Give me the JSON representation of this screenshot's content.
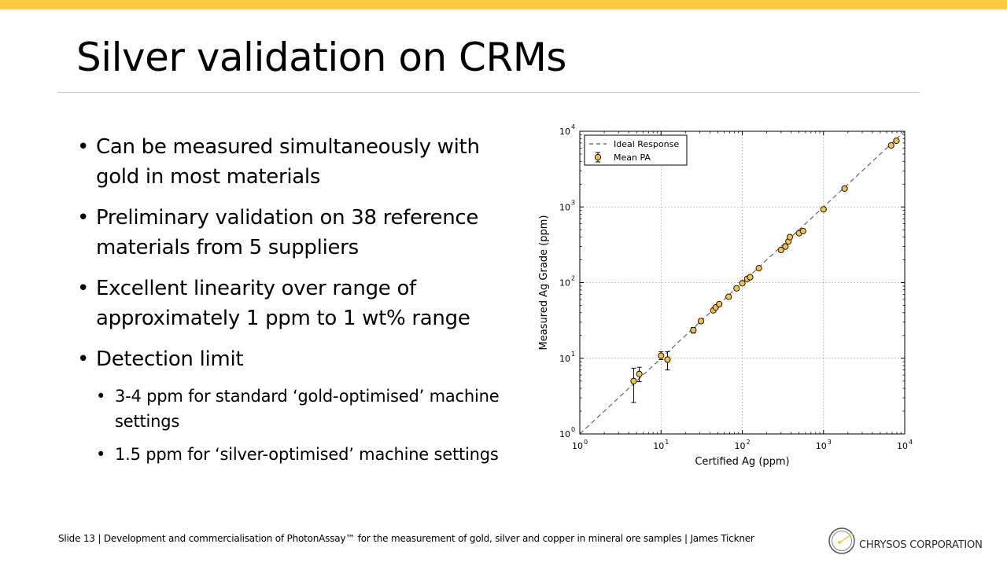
{
  "slide": {
    "title": "Silver validation on CRMs",
    "bullets": [
      "Can be measured simultaneously with gold in most materials",
      "Preliminary validation on 38 reference materials from 5 suppliers",
      "Excellent linearity over range of approximately 1 ppm to 1 wt% range",
      "Detection limit"
    ],
    "sub_bullets": [
      "3-4 ppm for standard ‘gold-optimised’ machine settings",
      "1.5 ppm for ‘silver-optimised’ machine settings"
    ],
    "footer": "Slide 13 | Development and commercialisation of PhotonAssay™ for the measurement of gold, silver and copper in mineral ore samples | James Tickner",
    "logo_text": "CHRYSOS CORPORATION",
    "colors": {
      "accent": "#fdca3f",
      "marker": "#f5c242",
      "rule": "#f2c64a"
    }
  },
  "chart_data": {
    "type": "scatter",
    "xscale": "log",
    "yscale": "log",
    "xlim": [
      1,
      10000
    ],
    "ylim": [
      1,
      10000
    ],
    "xlabel": "Certified Ag (ppm)",
    "ylabel": "Measured Ag Grade (ppm)",
    "grid": true,
    "xticks": [
      {
        "value": 1,
        "base": "10",
        "exp": "0"
      },
      {
        "value": 10,
        "base": "10",
        "exp": "1"
      },
      {
        "value": 100,
        "base": "10",
        "exp": "2"
      },
      {
        "value": 1000,
        "base": "10",
        "exp": "3"
      },
      {
        "value": 10000,
        "base": "10",
        "exp": "4"
      }
    ],
    "yticks": [
      {
        "value": 1,
        "base": "10",
        "exp": "0"
      },
      {
        "value": 10,
        "base": "10",
        "exp": "1"
      },
      {
        "value": 100,
        "base": "10",
        "exp": "2"
      },
      {
        "value": 1000,
        "base": "10",
        "exp": "3"
      },
      {
        "value": 10000,
        "base": "10",
        "exp": "4"
      }
    ],
    "legend": {
      "location": "top-left",
      "entries": [
        "Ideal Response",
        "Mean PA"
      ]
    },
    "series": [
      {
        "name": "Ideal Response",
        "kind": "line",
        "style": "dashed",
        "x": [
          1,
          10000
        ],
        "y": [
          1,
          10000
        ]
      },
      {
        "name": "Mean PA",
        "kind": "errorbar",
        "points": [
          {
            "x": 4.6,
            "y": 5.0,
            "lo": 2.6,
            "hi": 7.4
          },
          {
            "x": 5.4,
            "y": 6.2,
            "lo": 4.9,
            "hi": 7.6
          },
          {
            "x": 10.0,
            "y": 10.8,
            "lo": 9.6,
            "hi": 12.2
          },
          {
            "x": 12.0,
            "y": 9.6,
            "lo": 7.0,
            "hi": 12.2
          },
          {
            "x": 25,
            "y": 23.5,
            "lo": 21.5,
            "hi": 25.5
          },
          {
            "x": 31,
            "y": 31,
            "lo": 29,
            "hi": 33
          },
          {
            "x": 44,
            "y": 43,
            "lo": 41,
            "hi": 45
          },
          {
            "x": 47,
            "y": 47,
            "lo": 45,
            "hi": 49
          },
          {
            "x": 52,
            "y": 52,
            "lo": 50,
            "hi": 54
          },
          {
            "x": 68,
            "y": 65,
            "lo": 63,
            "hi": 67
          },
          {
            "x": 85,
            "y": 84,
            "lo": 82,
            "hi": 86
          },
          {
            "x": 100,
            "y": 98,
            "lo": 96,
            "hi": 100
          },
          {
            "x": 115,
            "y": 112,
            "lo": 110,
            "hi": 114
          },
          {
            "x": 125,
            "y": 118,
            "lo": 116,
            "hi": 120
          },
          {
            "x": 160,
            "y": 155,
            "lo": 152,
            "hi": 158
          },
          {
            "x": 300,
            "y": 270,
            "lo": 265,
            "hi": 275
          },
          {
            "x": 340,
            "y": 300,
            "lo": 295,
            "hi": 305
          },
          {
            "x": 370,
            "y": 350,
            "lo": 345,
            "hi": 355
          },
          {
            "x": 385,
            "y": 400,
            "lo": 395,
            "hi": 405
          },
          {
            "x": 500,
            "y": 450,
            "lo": 445,
            "hi": 455
          },
          {
            "x": 560,
            "y": 480,
            "lo": 475,
            "hi": 485
          },
          {
            "x": 1000,
            "y": 930,
            "lo": 920,
            "hi": 940
          },
          {
            "x": 1820,
            "y": 1750,
            "lo": 1730,
            "hi": 1770
          },
          {
            "x": 6800,
            "y": 6500,
            "lo": 6450,
            "hi": 6550
          },
          {
            "x": 7900,
            "y": 7500,
            "lo": 7450,
            "hi": 7550
          }
        ]
      }
    ]
  }
}
